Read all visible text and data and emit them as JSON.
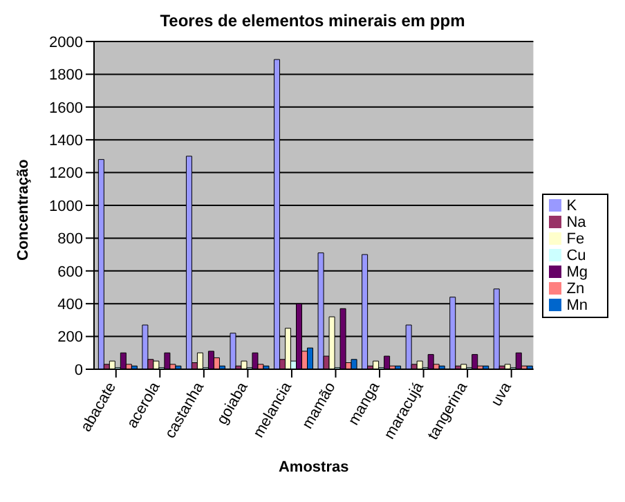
{
  "chart_data": {
    "type": "bar",
    "title": "Teores de elementos minerais em ppm",
    "xlabel": "Amostras",
    "ylabel": "Concentração",
    "categories": [
      "abacate",
      "acerola",
      "castanha",
      "goiaba",
      "melancia",
      "mamão",
      "manga",
      "maracujá",
      "tangerina",
      "uva"
    ],
    "series": [
      {
        "name": "K",
        "color": "#9999ff",
        "values": [
          1280,
          270,
          1300,
          220,
          1890,
          710,
          700,
          270,
          440,
          490
        ]
      },
      {
        "name": "Na",
        "color": "#993366",
        "values": [
          30,
          60,
          40,
          20,
          60,
          80,
          20,
          30,
          20,
          20
        ]
      },
      {
        "name": "Fe",
        "color": "#ffffcc",
        "values": [
          50,
          50,
          100,
          50,
          250,
          320,
          50,
          50,
          30,
          30
        ]
      },
      {
        "name": "Cu",
        "color": "#ccffff",
        "values": [
          10,
          10,
          10,
          10,
          50,
          10,
          10,
          10,
          10,
          10
        ]
      },
      {
        "name": "Mg",
        "color": "#660066",
        "values": [
          100,
          100,
          110,
          100,
          400,
          370,
          80,
          90,
          90,
          100
        ]
      },
      {
        "name": "Zn",
        "color": "#ff8080",
        "values": [
          30,
          30,
          70,
          30,
          110,
          40,
          20,
          30,
          20,
          20
        ]
      },
      {
        "name": "Mn",
        "color": "#0066cc",
        "values": [
          20,
          20,
          20,
          20,
          130,
          60,
          20,
          20,
          20,
          20
        ]
      }
    ],
    "ylim": [
      0,
      2000
    ],
    "yticks": [
      0,
      200,
      400,
      600,
      800,
      1000,
      1200,
      1400,
      1600,
      1800,
      2000
    ],
    "grid": "y",
    "legend": "right"
  }
}
